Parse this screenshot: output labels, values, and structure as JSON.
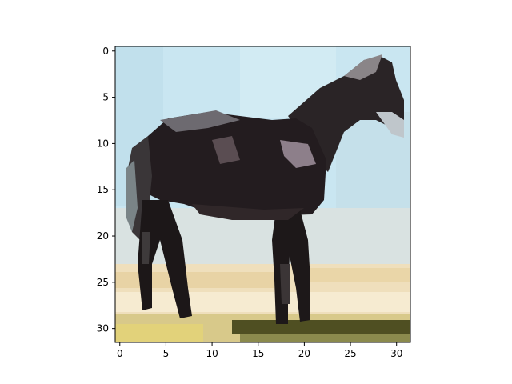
{
  "image": {
    "description_colors": {
      "sky": "#c8e4ee",
      "horse": "#1f1a1a",
      "sand": "#efe3c2",
      "grass": "#4a4a1e"
    },
    "grid_size": [
      32,
      32
    ]
  },
  "axes": {
    "x_ticks": [
      0,
      5,
      10,
      15,
      20,
      25,
      30
    ],
    "y_ticks": [
      0,
      5,
      10,
      15,
      20,
      25,
      30
    ],
    "x_range": [
      -0.5,
      31.5
    ],
    "y_range": [
      -0.5,
      31.5
    ]
  }
}
